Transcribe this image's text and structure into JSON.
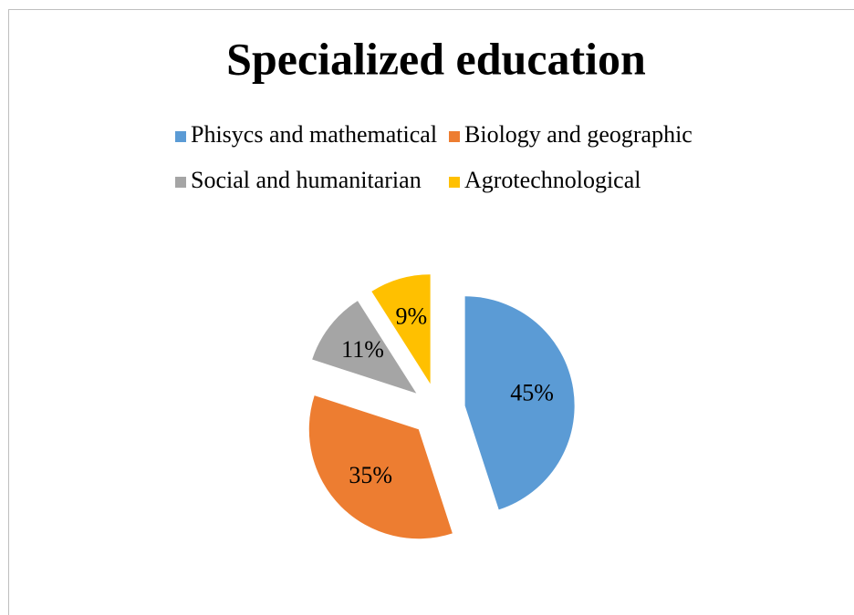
{
  "chart_data": {
    "type": "pie",
    "title": "Specialized education",
    "categories": [
      "Phisycs and mathematical",
      "Biology and geographic",
      "Social and humanitarian",
      "Agrotechnological"
    ],
    "values": [
      45,
      35,
      11,
      9
    ],
    "value_labels": [
      "45%",
      "35%",
      "11%",
      "9%"
    ],
    "colors": [
      "#5b9bd5",
      "#ed7d31",
      "#a5a5a5",
      "#ffc000"
    ],
    "legend": "top"
  }
}
